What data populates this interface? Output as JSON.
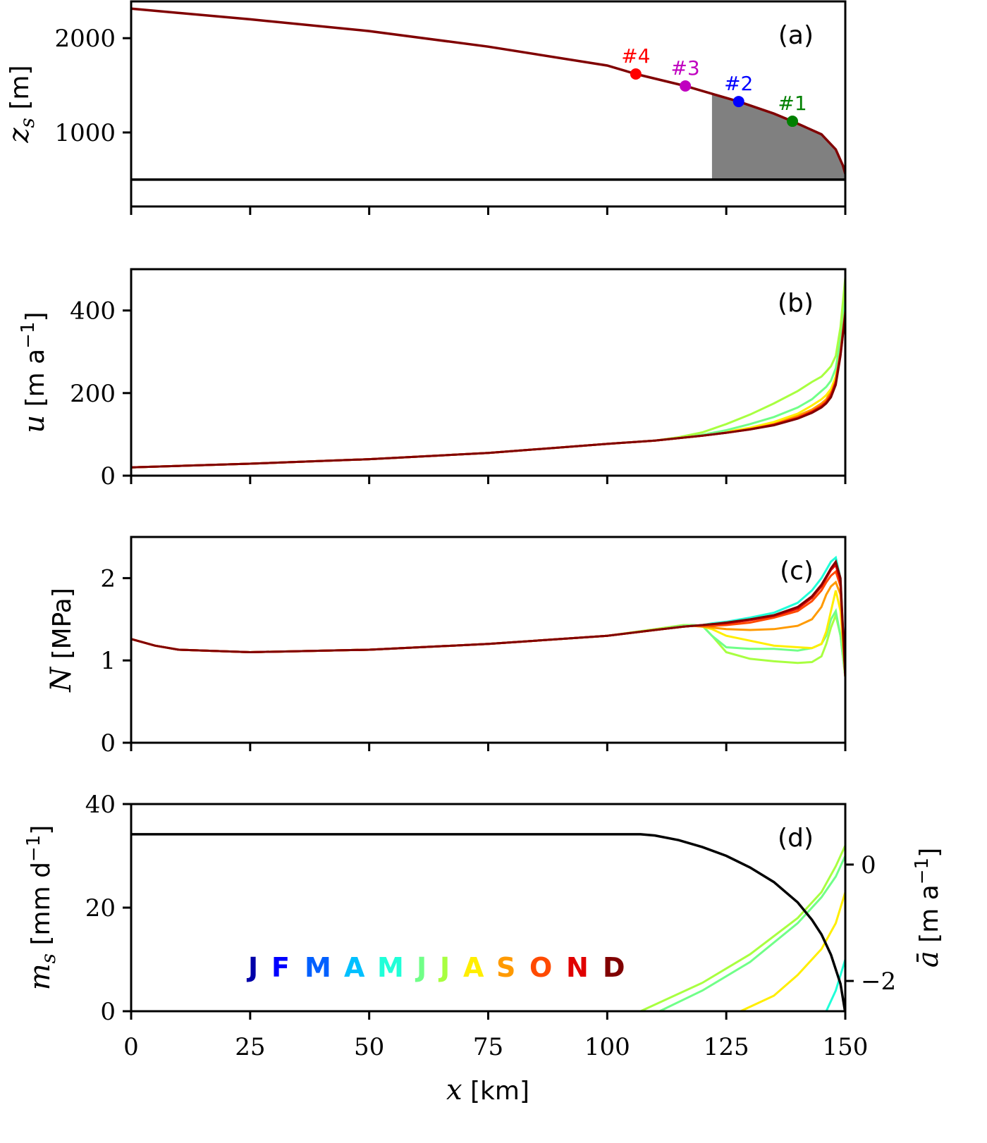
{
  "chart_data": [
    {
      "panel": "(a)",
      "type": "line",
      "ylabel": {
        "sym": "z",
        "sub": "s",
        "unit": " [m]"
      },
      "ylim": [
        215,
        2390
      ],
      "xlim": [
        0,
        150
      ],
      "yticks": [
        1000,
        2000
      ],
      "bed": {
        "value": 500,
        "color": "#000000"
      },
      "surface": {
        "color": "#800000",
        "x": [
          0,
          25,
          50,
          75,
          100,
          106,
          116.4,
          122,
          127.6,
          135,
          138.9,
          145,
          148,
          149.5,
          150
        ],
        "y": [
          2313,
          2200,
          2075,
          1910,
          1710,
          1620,
          1493,
          1410,
          1328,
          1200,
          1119,
          980,
          820,
          650,
          560
        ]
      },
      "shaded": {
        "x_start": 122,
        "x_end": 150,
        "color": "#808080"
      },
      "sites": [
        {
          "label": "#4",
          "x": 106,
          "y": 1620,
          "color": "#ff0000"
        },
        {
          "label": "#3",
          "x": 116.4,
          "y": 1493,
          "color": "#c000c0"
        },
        {
          "label": "#2",
          "x": 127.6,
          "y": 1328,
          "color": "#0000ff"
        },
        {
          "label": "#1",
          "x": 138.9,
          "y": 1119,
          "color": "#008000"
        }
      ]
    },
    {
      "panel": "(b)",
      "type": "line",
      "ylabel": {
        "sym": "u",
        "sub": "",
        "unit": " [m a",
        "sup": "−1",
        "close": "]"
      },
      "ylim": [
        0,
        500
      ],
      "xlim": [
        0,
        150
      ],
      "yticks": [
        0,
        200,
        400
      ],
      "x": [
        0,
        25,
        50,
        75,
        100,
        110,
        115,
        120,
        125,
        130,
        135,
        140,
        143,
        145,
        146,
        147,
        148,
        149,
        150
      ],
      "series": [
        {
          "month": "S",
          "color": "#ff9a00",
          "y": [
            20,
            29,
            40,
            55,
            77,
            85,
            91,
            97,
            105,
            114,
            126,
            145,
            160,
            175,
            185,
            205,
            240,
            310,
            410
          ]
        },
        {
          "month": "A",
          "color": "#ffee00",
          "y": [
            20,
            29,
            40,
            55,
            77,
            85,
            91,
            98,
            106,
            116,
            130,
            150,
            170,
            185,
            195,
            210,
            240,
            310,
            420
          ]
        },
        {
          "month": "J",
          "color": "#70ff88",
          "y": [
            20,
            29,
            40,
            55,
            77,
            85,
            91,
            99,
            110,
            125,
            142,
            165,
            185,
            205,
            215,
            230,
            260,
            330,
            440
          ]
        },
        {
          "month": "J",
          "color": "#a8ff40",
          "y": [
            20,
            29,
            40,
            55,
            77,
            85,
            93,
            105,
            125,
            148,
            175,
            205,
            227,
            240,
            252,
            265,
            290,
            360,
            480
          ]
        },
        {
          "month": "O",
          "color": "#ff4a00",
          "y": [
            20,
            29,
            40,
            55,
            77,
            85,
            91,
            97,
            104,
            113,
            124,
            141,
            156,
            170,
            180,
            198,
            230,
            300,
            400
          ]
        },
        {
          "month": "N",
          "color": "#e00000",
          "y": [
            20,
            29,
            40,
            55,
            77,
            85,
            91,
            97,
            104,
            112,
            123,
            139,
            154,
            167,
            177,
            193,
            224,
            293,
            393
          ]
        },
        {
          "month": "D",
          "color": "#800000",
          "y": [
            20,
            29,
            40,
            55,
            77,
            85,
            91,
            97,
            104,
            112,
            122,
            138,
            152,
            165,
            175,
            190,
            220,
            290,
            390
          ]
        }
      ]
    },
    {
      "panel": "(c)",
      "type": "line",
      "ylabel": {
        "sym": "N",
        "sub": "",
        "unit": " [MPa]"
      },
      "ylim": [
        0,
        2.5
      ],
      "xlim": [
        0,
        150
      ],
      "yticks": [
        0,
        1,
        2
      ],
      "x": [
        0,
        5,
        10,
        25,
        50,
        75,
        100,
        110,
        116,
        118,
        120,
        122,
        125,
        130,
        135,
        140,
        143,
        145,
        146,
        147,
        148,
        149,
        150
      ],
      "series": [
        {
          "month": "M",
          "color": "#20ffd8",
          "y": [
            1.26,
            1.18,
            1.13,
            1.1,
            1.13,
            1.2,
            1.3,
            1.37,
            1.41,
            1.42,
            1.43,
            1.45,
            1.47,
            1.52,
            1.58,
            1.7,
            1.85,
            2.0,
            2.1,
            2.2,
            2.25,
            2.0,
            0.8
          ]
        },
        {
          "month": "J",
          "color": "#a8ff40",
          "y": [
            1.26,
            1.18,
            1.13,
            1.1,
            1.13,
            1.2,
            1.3,
            1.38,
            1.43,
            1.43,
            1.42,
            1.3,
            1.1,
            1.02,
            0.99,
            0.97,
            0.98,
            1.05,
            1.2,
            1.4,
            1.55,
            1.3,
            0.8
          ]
        },
        {
          "month": "J",
          "color": "#70ff88",
          "y": [
            1.26,
            1.18,
            1.13,
            1.1,
            1.13,
            1.2,
            1.3,
            1.37,
            1.42,
            1.43,
            1.42,
            1.3,
            1.16,
            1.14,
            1.14,
            1.12,
            1.15,
            1.2,
            1.3,
            1.5,
            1.6,
            1.3,
            0.8
          ]
        },
        {
          "month": "A",
          "color": "#ffee00",
          "y": [
            1.26,
            1.18,
            1.13,
            1.1,
            1.13,
            1.2,
            1.3,
            1.37,
            1.41,
            1.42,
            1.41,
            1.38,
            1.3,
            1.24,
            1.18,
            1.16,
            1.15,
            1.2,
            1.35,
            1.6,
            1.85,
            1.6,
            0.8
          ]
        },
        {
          "month": "S",
          "color": "#ff9a00",
          "y": [
            1.26,
            1.18,
            1.13,
            1.1,
            1.13,
            1.2,
            1.3,
            1.37,
            1.41,
            1.42,
            1.41,
            1.4,
            1.38,
            1.37,
            1.38,
            1.42,
            1.5,
            1.65,
            1.8,
            1.9,
            1.95,
            1.8,
            0.8
          ]
        },
        {
          "month": "O",
          "color": "#ff4a00",
          "y": [
            1.26,
            1.18,
            1.13,
            1.1,
            1.13,
            1.2,
            1.3,
            1.37,
            1.41,
            1.42,
            1.42,
            1.42,
            1.43,
            1.46,
            1.52,
            1.6,
            1.72,
            1.85,
            1.95,
            2.03,
            2.08,
            1.9,
            0.8
          ]
        },
        {
          "month": "N",
          "color": "#e00000",
          "y": [
            1.26,
            1.18,
            1.13,
            1.1,
            1.13,
            1.2,
            1.3,
            1.37,
            1.41,
            1.42,
            1.43,
            1.44,
            1.45,
            1.49,
            1.54,
            1.63,
            1.76,
            1.9,
            2.0,
            2.1,
            2.16,
            1.95,
            0.8
          ]
        },
        {
          "month": "D",
          "color": "#800000",
          "y": [
            1.26,
            1.18,
            1.13,
            1.1,
            1.13,
            1.2,
            1.3,
            1.37,
            1.41,
            1.42,
            1.43,
            1.44,
            1.46,
            1.5,
            1.55,
            1.65,
            1.78,
            1.92,
            2.02,
            2.12,
            2.2,
            2.0,
            0.8
          ]
        }
      ]
    },
    {
      "panel": "(d)",
      "type": "line",
      "ylabel": {
        "sym": "m",
        "sub": "s",
        "unit": " [mm d",
        "sup": "−1",
        "close": "]"
      },
      "ylim": [
        0,
        40
      ],
      "xlim": [
        0,
        150
      ],
      "yticks": [
        0,
        20,
        40
      ],
      "y2label": {
        "sym": "ā",
        "unit": " [m a",
        "sup": "−1",
        "close": "]"
      },
      "y2lim": [
        -2.52,
        1.04
      ],
      "y2ticks": [
        0,
        -2
      ],
      "xlabel": {
        "sym": "x",
        "unit": " [km]"
      },
      "xticks": [
        0,
        25,
        50,
        75,
        100,
        125,
        150
      ],
      "series": [
        {
          "month": "J",
          "color": "#a8ff40",
          "x": [
            107,
            120,
            130,
            140,
            145,
            148,
            150
          ],
          "y": [
            0,
            5.5,
            11,
            18,
            23,
            28,
            32
          ]
        },
        {
          "month": "J",
          "color": "#70ff88",
          "x": [
            111,
            120,
            130,
            140,
            145,
            148,
            150
          ],
          "y": [
            0,
            4,
            9.5,
            17,
            22,
            26,
            30
          ]
        },
        {
          "month": "A",
          "color": "#ffee00",
          "x": [
            128,
            135,
            140,
            145,
            148,
            150
          ],
          "y": [
            0,
            3,
            7,
            12,
            17,
            23
          ]
        },
        {
          "month": "M",
          "color": "#20ffd8",
          "x": [
            146,
            148,
            150
          ],
          "y": [
            0,
            4,
            10
          ]
        }
      ],
      "abar": {
        "axis": "right",
        "color": "#000000",
        "x": [
          0,
          107,
          110,
          115,
          120,
          125,
          130,
          135,
          140,
          143,
          145,
          147,
          149,
          150
        ],
        "y": [
          0.52,
          0.52,
          0.5,
          0.42,
          0.3,
          0.15,
          -0.05,
          -0.3,
          -0.65,
          -0.95,
          -1.2,
          -1.55,
          -2.05,
          -2.55
        ]
      },
      "legend": {
        "placement": "bottom-left",
        "months": [
          {
            "label": "J",
            "color": "#0000a8"
          },
          {
            "label": "F",
            "color": "#0000ff"
          },
          {
            "label": "M",
            "color": "#0060ff"
          },
          {
            "label": "A",
            "color": "#00c0ff"
          },
          {
            "label": "M",
            "color": "#20ffd8"
          },
          {
            "label": "J",
            "color": "#70ff88"
          },
          {
            "label": "J",
            "color": "#a8ff40"
          },
          {
            "label": "A",
            "color": "#ffee00"
          },
          {
            "label": "S",
            "color": "#ff9a00"
          },
          {
            "label": "O",
            "color": "#ff4a00"
          },
          {
            "label": "N",
            "color": "#e00000"
          },
          {
            "label": "D",
            "color": "#800000"
          }
        ]
      }
    }
  ]
}
